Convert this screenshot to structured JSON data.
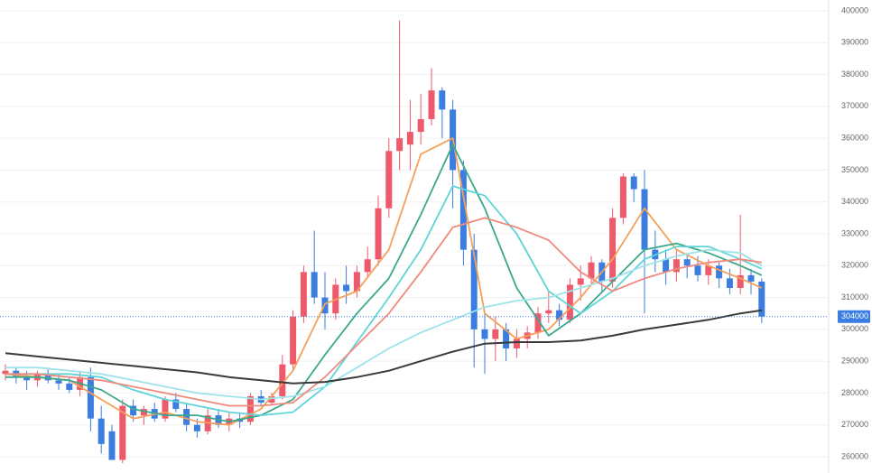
{
  "chart_data": {
    "type": "candlestick",
    "ylim": [
      254900,
      403400
    ],
    "yticks": [
      260000,
      270000,
      280000,
      290000,
      300000,
      310000,
      320000,
      330000,
      340000,
      350000,
      360000,
      370000,
      380000,
      390000,
      400000
    ],
    "grid": true,
    "up_color": "#ee5a6c",
    "down_color": "#3b7de0",
    "last_price": 304000,
    "open": [
      286000,
      287000,
      285000,
      284000,
      286000,
      284000,
      283000,
      281000,
      285000,
      272000,
      268000,
      259000,
      276000,
      273000,
      275000,
      272000,
      278000,
      275000,
      270000,
      268000,
      273000,
      270000,
      272000,
      271000,
      279000,
      277000,
      279000,
      289000,
      304000,
      318000,
      310000,
      305000,
      314000,
      312000,
      318000,
      322000,
      338000,
      356000,
      358000,
      362000,
      366000,
      375000,
      369000,
      350000,
      325000,
      300000,
      297000,
      300000,
      294000,
      297000,
      299000,
      305000,
      306000,
      303000,
      314000,
      316000,
      321000,
      315000,
      335000,
      348000,
      344000,
      325000,
      322000,
      318000,
      322000,
      320000,
      317000,
      320000,
      316000,
      313000,
      317000,
      315000
    ],
    "high": [
      289000,
      288000,
      287000,
      287000,
      288000,
      286000,
      285000,
      287000,
      288000,
      276000,
      270000,
      278000,
      278000,
      276000,
      277000,
      279000,
      280000,
      277000,
      272000,
      275000,
      275000,
      274000,
      274000,
      280000,
      281000,
      280000,
      292000,
      306000,
      320000,
      331000,
      318000,
      316000,
      320000,
      320000,
      326000,
      342000,
      360000,
      397000,
      372000,
      374000,
      382000,
      376000,
      372000,
      353000,
      330000,
      306000,
      304000,
      302000,
      300000,
      301000,
      307000,
      312000,
      308000,
      316000,
      320000,
      323000,
      322000,
      338000,
      349000,
      349000,
      350000,
      331000,
      325000,
      325000,
      324000,
      323000,
      322000,
      321000,
      319000,
      336000,
      319000,
      316000
    ],
    "low": [
      284000,
      283000,
      281000,
      282000,
      283000,
      281000,
      280000,
      279000,
      268000,
      261000,
      259000,
      258000,
      271000,
      270000,
      271000,
      271000,
      274000,
      268000,
      266000,
      267000,
      269000,
      268000,
      269000,
      270000,
      276000,
      276000,
      278000,
      287000,
      302000,
      308000,
      300000,
      303000,
      308000,
      310000,
      316000,
      320000,
      335000,
      350000,
      350000,
      358000,
      364000,
      360000,
      338000,
      320000,
      288000,
      286000,
      290000,
      290000,
      291000,
      294000,
      297000,
      302000,
      301000,
      302000,
      309000,
      314000,
      312000,
      313000,
      333000,
      340000,
      305000,
      318000,
      314000,
      315000,
      316000,
      315000,
      314000,
      313000,
      311000,
      311000,
      311000,
      302000
    ],
    "close": [
      287000,
      285000,
      284000,
      286000,
      284000,
      283000,
      281000,
      285000,
      272000,
      264000,
      259000,
      276000,
      273000,
      275000,
      272000,
      278000,
      275000,
      270000,
      268000,
      273000,
      270000,
      272000,
      271000,
      279000,
      277000,
      279000,
      289000,
      304000,
      318000,
      310000,
      305000,
      314000,
      312000,
      318000,
      322000,
      338000,
      356000,
      360000,
      362000,
      366000,
      375000,
      369000,
      350000,
      325000,
      300000,
      297000,
      300000,
      294000,
      297000,
      299000,
      305000,
      306000,
      303000,
      314000,
      316000,
      321000,
      315000,
      335000,
      348000,
      344000,
      325000,
      322000,
      318000,
      322000,
      320000,
      317000,
      320000,
      316000,
      313000,
      317000,
      315000,
      304000
    ],
    "series": [
      {
        "color": "#f5a05a",
        "x": [
          0,
          3,
          6,
          9,
          12,
          15,
          18,
          21,
          24,
          27,
          30,
          33,
          36,
          39,
          42,
          45,
          48,
          51,
          54,
          57,
          60,
          63,
          66,
          69,
          71
        ],
        "values": [
          286000,
          285000,
          284000,
          278000,
          272000,
          274000,
          271000,
          270000,
          275000,
          287000,
          308000,
          312000,
          325000,
          355000,
          360000,
          305000,
          297000,
          300000,
          310000,
          322000,
          338000,
          325000,
          320000,
          316000,
          313000
        ]
      },
      {
        "color": "#3aa88c",
        "x": [
          0,
          3,
          6,
          9,
          12,
          15,
          18,
          21,
          24,
          27,
          30,
          33,
          36,
          39,
          42,
          45,
          48,
          51,
          54,
          57,
          60,
          63,
          66,
          69,
          71
        ],
        "values": [
          285000,
          285000,
          284000,
          281000,
          275000,
          273000,
          273000,
          271000,
          273000,
          278000,
          292000,
          305000,
          316000,
          336000,
          358000,
          338000,
          313000,
          298000,
          305000,
          315000,
          325000,
          327000,
          324000,
          320000,
          317000
        ]
      },
      {
        "color": "#5fd4d8",
        "x": [
          0,
          3,
          6,
          9,
          12,
          15,
          18,
          21,
          24,
          27,
          30,
          33,
          36,
          39,
          42,
          45,
          48,
          51,
          54,
          57,
          60,
          63,
          66,
          69,
          71
        ],
        "values": [
          286000,
          286000,
          286000,
          285000,
          281000,
          278000,
          276000,
          274000,
          273000,
          274000,
          282000,
          296000,
          310000,
          325000,
          345000,
          342000,
          330000,
          312000,
          305000,
          312000,
          322000,
          326000,
          326000,
          322000,
          319000
        ]
      },
      {
        "color": "#9ee3ea",
        "x": [
          0,
          3,
          6,
          9,
          12,
          15,
          18,
          21,
          24,
          27,
          30,
          33,
          36,
          39,
          42,
          45,
          48,
          51,
          54,
          57,
          60,
          63,
          66,
          69,
          71
        ],
        "values": [
          288000,
          288000,
          287000,
          286000,
          284000,
          282000,
          280000,
          279000,
          278000,
          279000,
          282000,
          288000,
          294000,
          299000,
          303000,
          307000,
          309000,
          310000,
          313000,
          316000,
          320000,
          323000,
          325000,
          324000,
          320000
        ]
      },
      {
        "color": "#ef8a7e",
        "x": [
          0,
          3,
          6,
          9,
          12,
          15,
          18,
          21,
          24,
          27,
          30,
          33,
          36,
          39,
          42,
          45,
          48,
          51,
          54,
          57,
          60,
          63,
          66,
          69,
          71
        ],
        "values": [
          286000,
          286000,
          285000,
          284000,
          282000,
          280000,
          278000,
          276000,
          276000,
          277000,
          285000,
          295000,
          305000,
          318000,
          332000,
          335000,
          332000,
          328000,
          318000,
          312000,
          316000,
          319000,
          321000,
          322000,
          321000
        ]
      },
      {
        "color": "#3a3a3a",
        "x": [
          0,
          3,
          6,
          9,
          12,
          15,
          18,
          21,
          24,
          27,
          30,
          33,
          36,
          39,
          42,
          45,
          48,
          51,
          54,
          57,
          60,
          63,
          66,
          69,
          71
        ],
        "values": [
          292500,
          291500,
          290500,
          289500,
          288500,
          287500,
          286500,
          285000,
          284000,
          283000,
          283500,
          285000,
          287000,
          290000,
          293000,
          295500,
          296000,
          296000,
          296500,
          298000,
          300000,
          301500,
          303000,
          305000,
          306000
        ]
      }
    ]
  }
}
